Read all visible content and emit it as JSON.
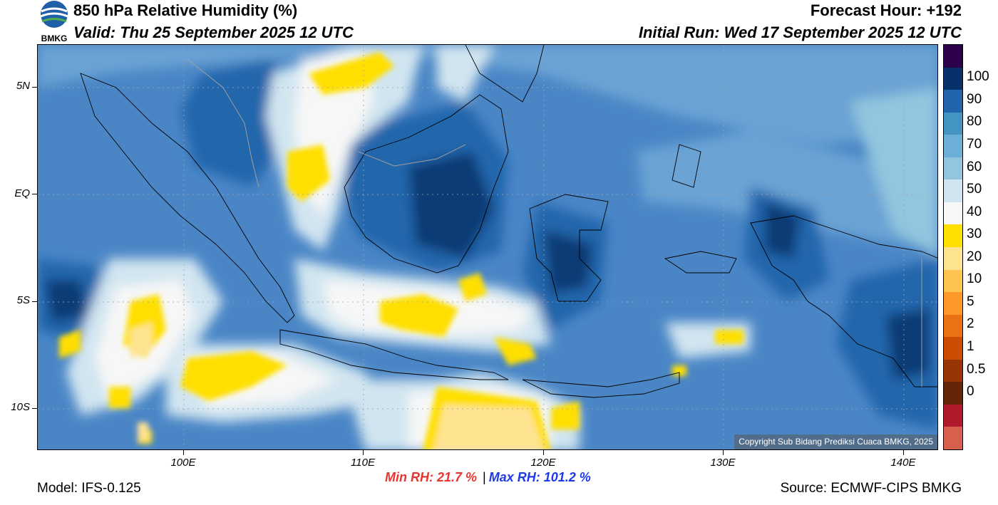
{
  "header": {
    "title": "850 hPa Relative Humidity (%)",
    "valid": "Valid: Thu 25 September 2025 12 UTC",
    "forecast_hour": "Forecast Hour: +192",
    "initial_run": "Initial Run: Wed 17 September 2025 12 UTC",
    "logo_text": "BMKG"
  },
  "map": {
    "lat_labels": [
      "5N",
      "EQ",
      "5S",
      "10S"
    ],
    "lon_labels": [
      "100E",
      "110E",
      "120E",
      "130E",
      "140E"
    ],
    "copyright": "Copyright Sub Bidang Prediksi Cuaca BMKG, 2025",
    "fill_colors": {
      "dry_yellow": "#ffdf00",
      "pale_yellow": "#fee391",
      "white": "#f7f7f7",
      "light_blue": "#d1e5f0",
      "blue_60": "#92c5de",
      "blue_70": "#6aa3d4",
      "blue_80": "#4a86c6",
      "blue_90": "#2166ac",
      "navy": "#0f3a75"
    }
  },
  "colorbar": {
    "labels": [
      "100",
      "90",
      "80",
      "70",
      "60",
      "50",
      "40",
      "30",
      "20",
      "10",
      "5",
      "2",
      "1",
      "0.5",
      "0"
    ],
    "colors": [
      "#2d004b",
      "#08306b",
      "#2166ac",
      "#4393c3",
      "#6baed6",
      "#92c5de",
      "#d1e5f0",
      "#f7f7f7",
      "#ffdf00",
      "#fee391",
      "#fec44f",
      "#fe9929",
      "#ec7014",
      "#cc4c02",
      "#993404",
      "#662506",
      "#b2182b",
      "#d6604d"
    ]
  },
  "stats": {
    "min": "Min RH:  21.7 %",
    "separator": "|",
    "max": "Max RH: 101.2 %"
  },
  "footer": {
    "model": "Model: IFS-0.125",
    "source": "Source: ECMWF-CIPS BMKG"
  }
}
